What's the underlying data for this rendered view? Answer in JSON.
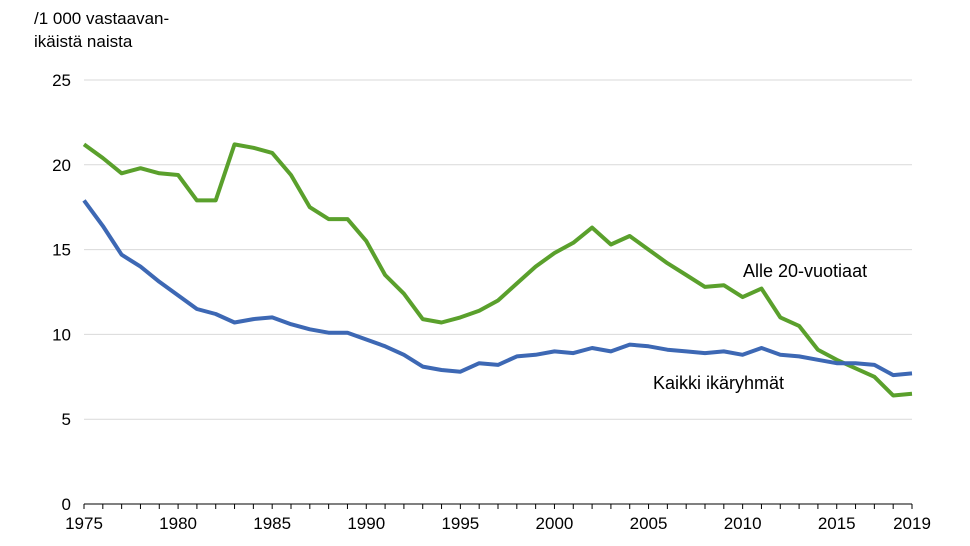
{
  "chart_data": {
    "type": "line",
    "ylabel_lines": [
      "/1 000 vastaavan-",
      "ikäistä naista"
    ],
    "xlim": [
      1975,
      2019
    ],
    "ylim": [
      0,
      25
    ],
    "x_ticks": [
      1975,
      1980,
      1985,
      1990,
      1995,
      2000,
      2005,
      2010,
      2015,
      2019
    ],
    "y_ticks": [
      0,
      5,
      10,
      15,
      20,
      25
    ],
    "grid": true,
    "x": [
      1975,
      1976,
      1977,
      1978,
      1979,
      1980,
      1981,
      1982,
      1983,
      1984,
      1985,
      1986,
      1987,
      1988,
      1989,
      1990,
      1991,
      1992,
      1993,
      1994,
      1995,
      1996,
      1997,
      1998,
      1999,
      2000,
      2001,
      2002,
      2003,
      2004,
      2005,
      2006,
      2007,
      2008,
      2009,
      2010,
      2011,
      2012,
      2013,
      2014,
      2015,
      2016,
      2017,
      2018,
      2019
    ],
    "series": [
      {
        "name": "Alle 20-vuotiaat",
        "color": "#5aa02c",
        "values": [
          21.2,
          20.4,
          19.5,
          19.8,
          19.5,
          19.4,
          17.9,
          17.9,
          21.2,
          21.0,
          20.7,
          19.4,
          17.5,
          16.8,
          16.8,
          15.5,
          13.5,
          12.4,
          10.9,
          10.7,
          11.0,
          11.4,
          12.0,
          13.0,
          14.0,
          14.8,
          15.4,
          16.3,
          15.3,
          15.8,
          15.0,
          14.2,
          13.5,
          12.8,
          12.9,
          12.2,
          12.7,
          11.0,
          10.5,
          9.1,
          8.5,
          8.0,
          7.5,
          6.4,
          6.5
        ]
      },
      {
        "name": "Kaikki ikäryhmät",
        "color": "#3d68b4",
        "values": [
          17.9,
          16.4,
          14.7,
          14.0,
          13.1,
          12.3,
          11.5,
          11.2,
          10.7,
          10.9,
          11.0,
          10.6,
          10.3,
          10.1,
          10.1,
          9.7,
          9.3,
          8.8,
          8.1,
          7.9,
          7.8,
          8.3,
          8.2,
          8.7,
          8.8,
          9.0,
          8.9,
          9.2,
          9.0,
          9.4,
          9.3,
          9.1,
          9.0,
          8.9,
          9.0,
          8.8,
          9.2,
          8.8,
          8.7,
          8.5,
          8.3,
          8.3,
          8.2,
          7.6,
          7.7
        ]
      }
    ]
  }
}
